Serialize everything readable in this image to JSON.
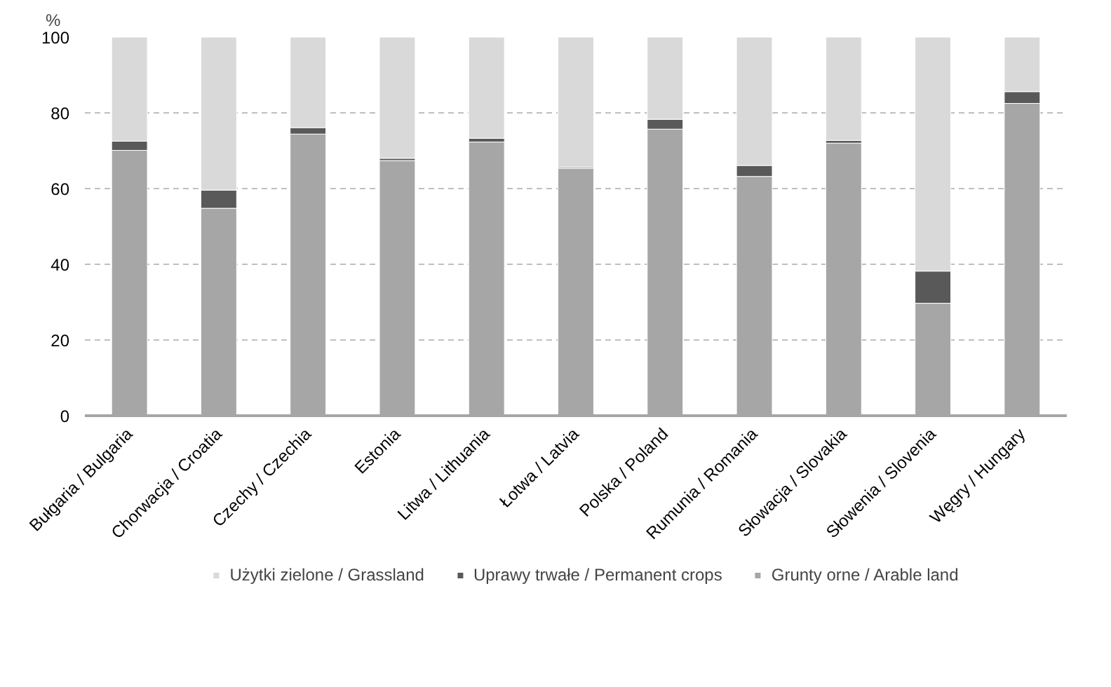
{
  "chart_data": {
    "type": "bar",
    "stacked": true,
    "ylabel": "%",
    "categories": [
      "Bułgaria / Bulgaria",
      "Chorwacja / Croatia",
      "Czechy / Czechia",
      "Estonia",
      "Litwa / Lithuania",
      "Łotwa / Latvia",
      "Polska / Poland",
      "Rumunia / Romania",
      "Słowacja / Slovakia",
      "Słowenia / Slovenia",
      "Węgry / Hungary"
    ],
    "series": [
      {
        "name": "Grunty orne / Arable land",
        "color": "#a6a6a6",
        "values": [
          70.1,
          54.8,
          74.4,
          67.4,
          72.3,
          65.3,
          75.7,
          63.2,
          72.0,
          29.7,
          82.5
        ]
      },
      {
        "name": "Uprawy trwałe / Permanent crops",
        "color": "#595959",
        "values": [
          2.4,
          4.8,
          1.7,
          0.6,
          1.0,
          0.3,
          2.6,
          2.9,
          0.7,
          8.5,
          3.1
        ]
      },
      {
        "name": "Użytki zielone / Grassland",
        "color": "#d9d9d9",
        "values": [
          27.5,
          40.4,
          23.9,
          32.0,
          26.7,
          34.4,
          21.7,
          33.9,
          27.3,
          61.8,
          14.4
        ]
      }
    ],
    "ylim": [
      0,
      100
    ],
    "yticks": [
      0,
      20,
      40,
      60,
      80,
      100
    ],
    "grid": "y",
    "legend": "bottom"
  }
}
